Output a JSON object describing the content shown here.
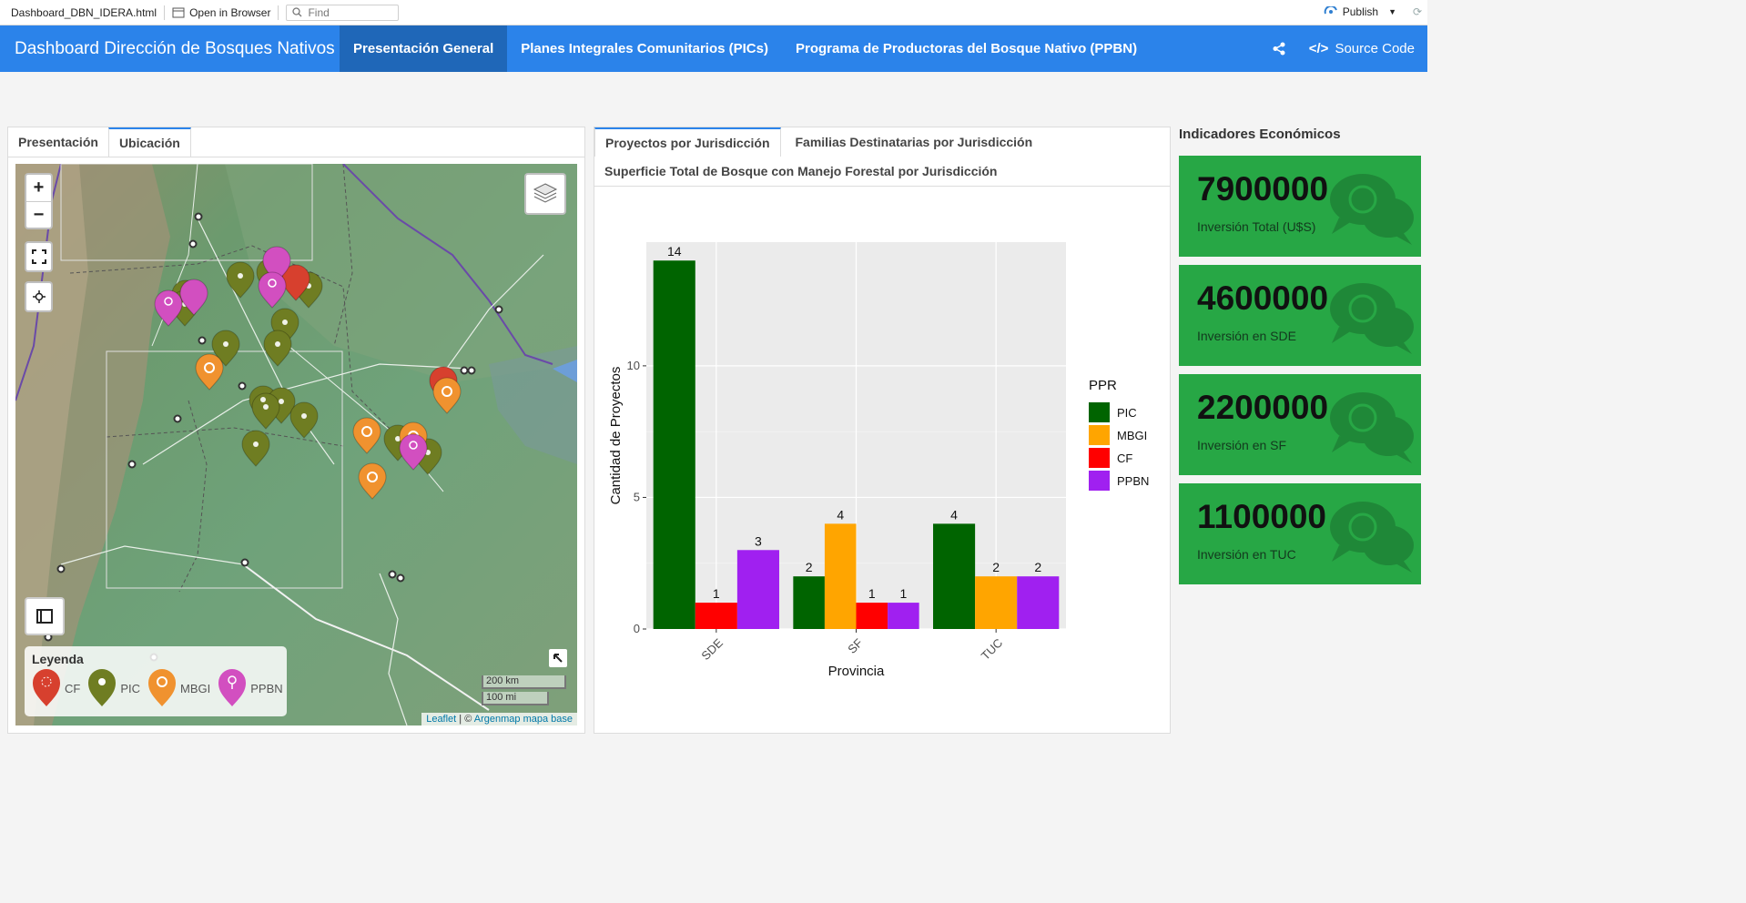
{
  "toolbar": {
    "filename": "Dashboard_DBN_IDERA.html",
    "open_in_browser": "Open in Browser",
    "find_placeholder": "Find",
    "publish": "Publish"
  },
  "navbar": {
    "brand": "Dashboard Dirección de Bosques Nativos",
    "tabs": [
      {
        "label": "Presentación General",
        "active": true
      },
      {
        "label": "Planes Integrales Comunitarios (PICs)",
        "active": false
      },
      {
        "label": "Programa de Productoras del Bosque Nativo (PPBN)",
        "active": false
      }
    ],
    "source_code": "Source Code"
  },
  "left_panel": {
    "tabs": [
      {
        "label": "Presentación",
        "active": false
      },
      {
        "label": "Ubicación",
        "active": true
      }
    ]
  },
  "map": {
    "zoom_in": "+",
    "zoom_out": "−",
    "legend_title": "Leyenda",
    "legend_items": [
      {
        "label": "CF",
        "color": "#d7402e"
      },
      {
        "label": "PIC",
        "color": "#6f7d22"
      },
      {
        "label": "MBGI",
        "color": "#f0922f"
      },
      {
        "label": "PPBN",
        "color": "#d24fc0"
      }
    ],
    "scale_km": "200 km",
    "scale_mi": "100 mi",
    "attribution_leaflet": "Leaflet",
    "attribution_sep": " | © ",
    "attribution_base": "Argenmap mapa base"
  },
  "chart_panel": {
    "tabs": [
      {
        "label": "Proyectos por Jurisdicción",
        "active": true
      },
      {
        "label": "Familias Destinatarias por Jurisdicción",
        "active": false
      },
      {
        "label": "Superficie Total de Bosque con Manejo Forestal por Jurisdicción",
        "active": false
      }
    ]
  },
  "chart_data": {
    "type": "bar",
    "title": "",
    "xlabel": "Provincia",
    "ylabel": "Cantidad de Proyectos",
    "categories": [
      "SDE",
      "SF",
      "TUC"
    ],
    "ylim": [
      0,
      14.7
    ],
    "yticks": [
      0,
      5,
      10
    ],
    "grid": true,
    "legend_title": "PPR",
    "legend_position": "right",
    "series": [
      {
        "name": "PIC",
        "color": "#006400",
        "values": [
          14,
          2,
          4
        ]
      },
      {
        "name": "MBGI",
        "color": "#ffa500",
        "values": [
          0,
          4,
          2
        ]
      },
      {
        "name": "CF",
        "color": "#ff0000",
        "values": [
          1,
          1,
          0
        ]
      },
      {
        "name": "PPBN",
        "color": "#a020f0",
        "values": [
          3,
          1,
          2
        ]
      }
    ]
  },
  "indicators": {
    "title": "Indicadores Económicos",
    "boxes": [
      {
        "value": "7900000",
        "caption": "Inversión Total (U$S)"
      },
      {
        "value": "4600000",
        "caption": "Inversión en SDE"
      },
      {
        "value": "2200000",
        "caption": "Inversión en SF"
      },
      {
        "value": "1100000",
        "caption": "Inversión en TUC"
      }
    ]
  }
}
